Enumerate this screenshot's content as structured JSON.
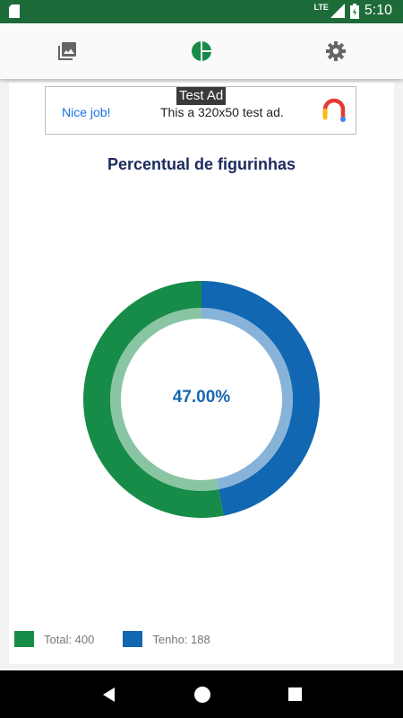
{
  "status_bar": {
    "network": "LTE",
    "time": "5:10"
  },
  "top_nav": {
    "icons": [
      "gallery-icon",
      "pie-chart-icon",
      "settings-icon"
    ],
    "active_color": "#168c48"
  },
  "ad": {
    "tag": "Test Ad",
    "headline": "Nice job!",
    "text": "This a 320x50 test ad."
  },
  "chart_data": {
    "type": "pie",
    "title": "Percentual de figurinhas",
    "center_label": "47.00%",
    "slices": [
      {
        "label": "Total: 400",
        "value": 53,
        "color": "#168c48"
      },
      {
        "label": "Tenho: 188",
        "value": 47,
        "color": "#1167b1"
      }
    ]
  },
  "legend": {
    "items": [
      {
        "label": "Total: 400",
        "color": "#168c48"
      },
      {
        "label": "Tenho: 188",
        "color": "#1167b1"
      }
    ]
  }
}
